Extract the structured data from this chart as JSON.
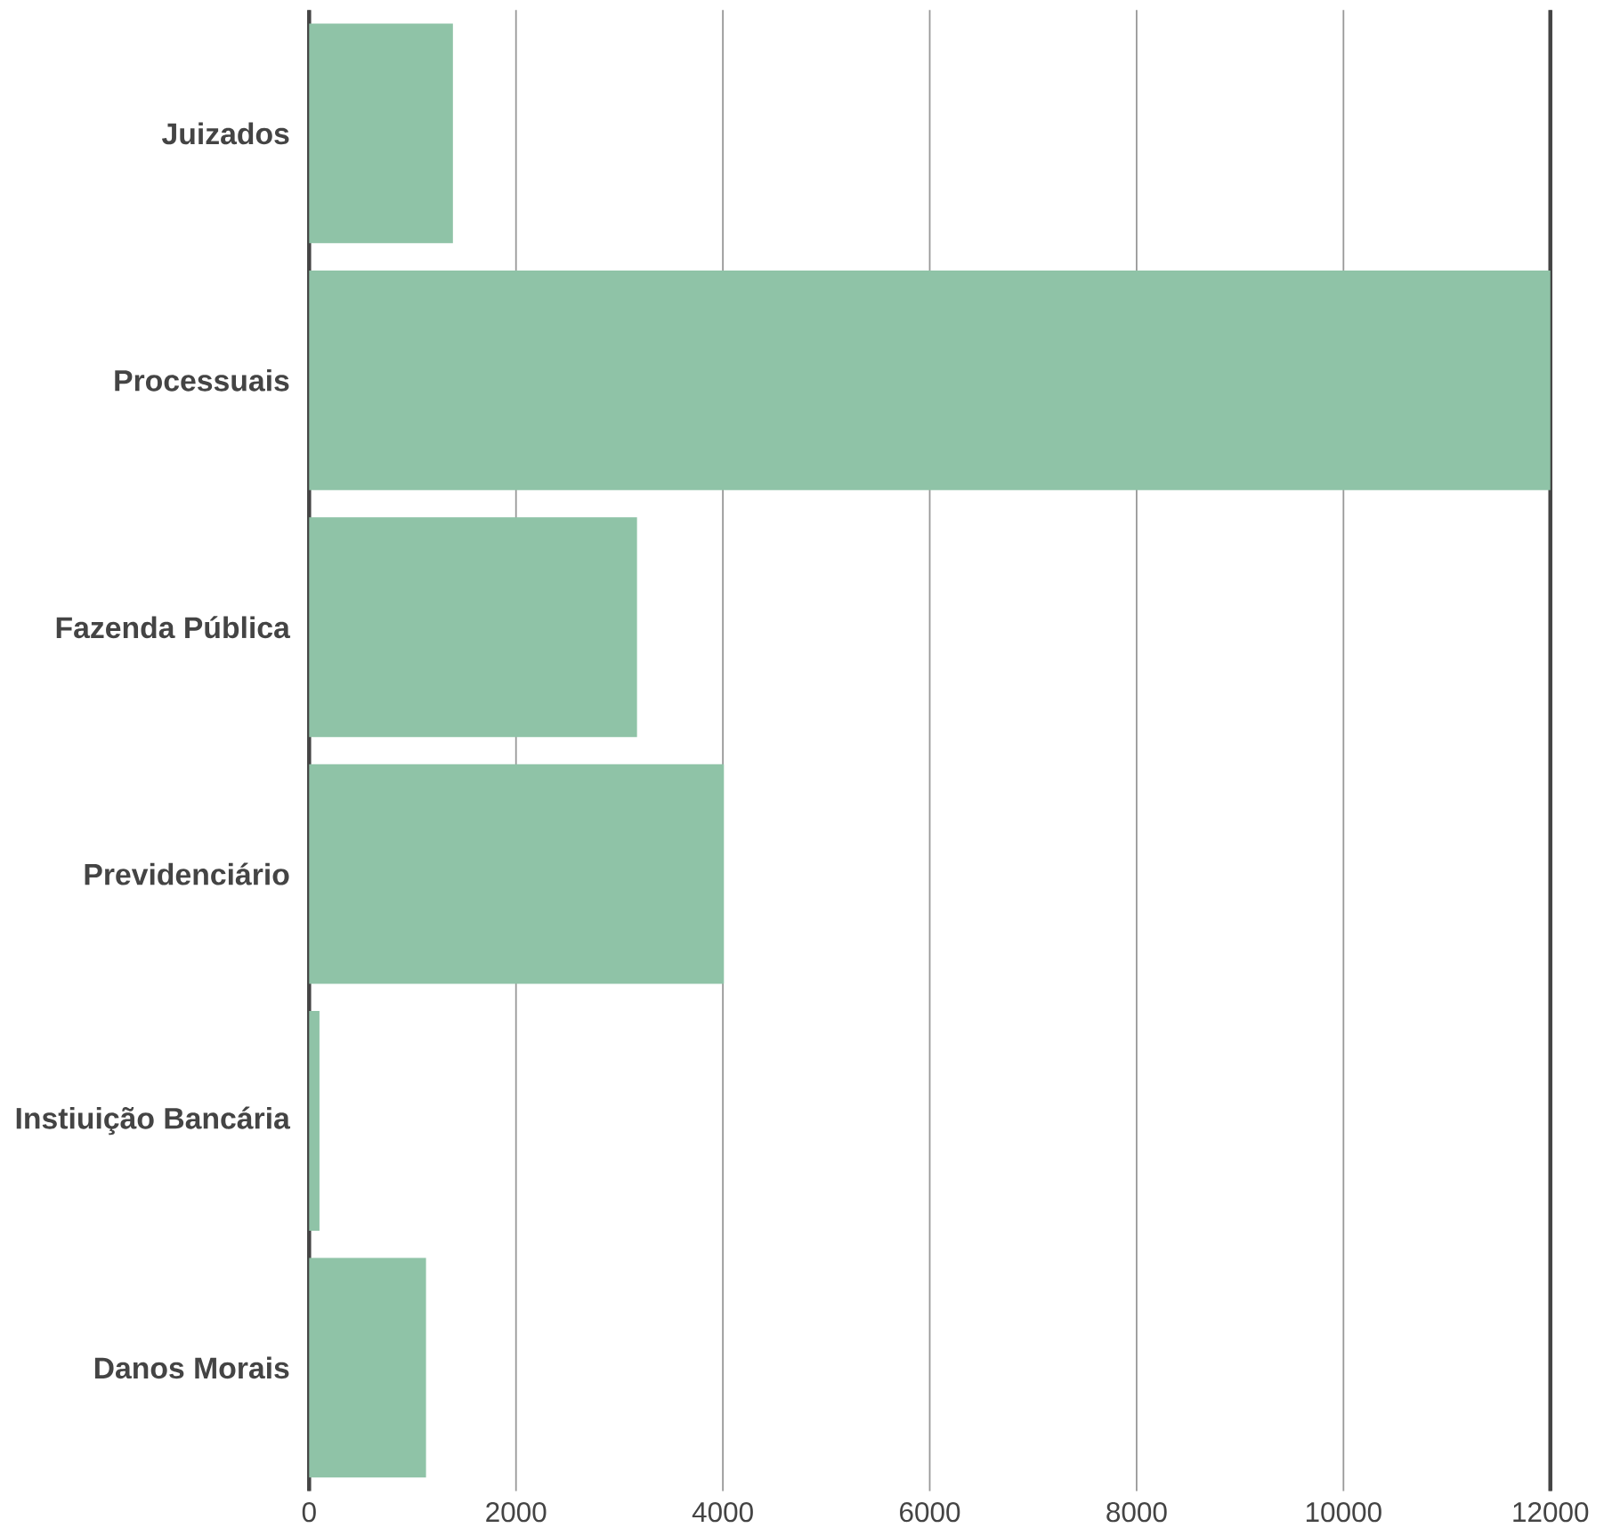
{
  "chart_data": {
    "type": "bar",
    "orientation": "horizontal",
    "categories": [
      "Juizados",
      "Processuais",
      "Fazenda Pública",
      "Previdenciário",
      "Instiuição Bancária",
      "Danos Morais"
    ],
    "values": [
      1390,
      12000,
      3170,
      4010,
      100,
      1130
    ],
    "color": "#8fc3a7",
    "xlim": [
      0,
      12000
    ],
    "xticks": [
      0,
      2000,
      4000,
      6000,
      8000,
      10000,
      12000
    ],
    "grid": "x"
  }
}
